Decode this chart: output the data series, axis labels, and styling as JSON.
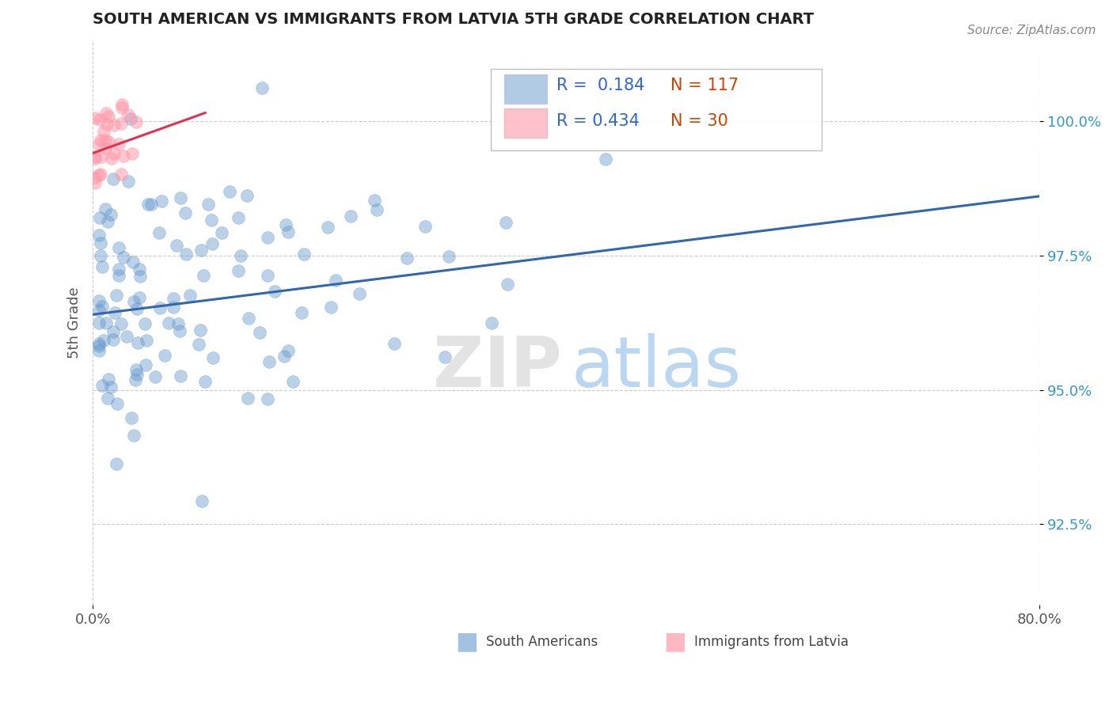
{
  "title": "SOUTH AMERICAN VS IMMIGRANTS FROM LATVIA 5TH GRADE CORRELATION CHART",
  "source": "Source: ZipAtlas.com",
  "ylabel": "5th Grade",
  "xlim": [
    0.0,
    80.0
  ],
  "ylim": [
    91.0,
    101.5
  ],
  "yticks": [
    92.5,
    95.0,
    97.5,
    100.0
  ],
  "ytick_labels": [
    "92.5%",
    "95.0%",
    "97.5%",
    "100.0%"
  ],
  "legend_R_blue": "0.184",
  "legend_N_blue": "117",
  "legend_R_pink": "0.434",
  "legend_N_pink": "30",
  "blue_color": "#6699CC",
  "pink_color": "#FF99AA",
  "blue_line_color": "#3366AA",
  "pink_line_color": "#DD3355",
  "blue_line_x": [
    0.0,
    80.0
  ],
  "blue_line_y": [
    96.4,
    98.6
  ],
  "pink_line_x": [
    0.0,
    9.5
  ],
  "pink_line_y": [
    99.4,
    100.15
  ],
  "watermark_zip": "ZIP",
  "watermark_atlas": "atlas",
  "legend_label_blue": "South Americans",
  "legend_label_pink": "Immigrants from Latvia"
}
